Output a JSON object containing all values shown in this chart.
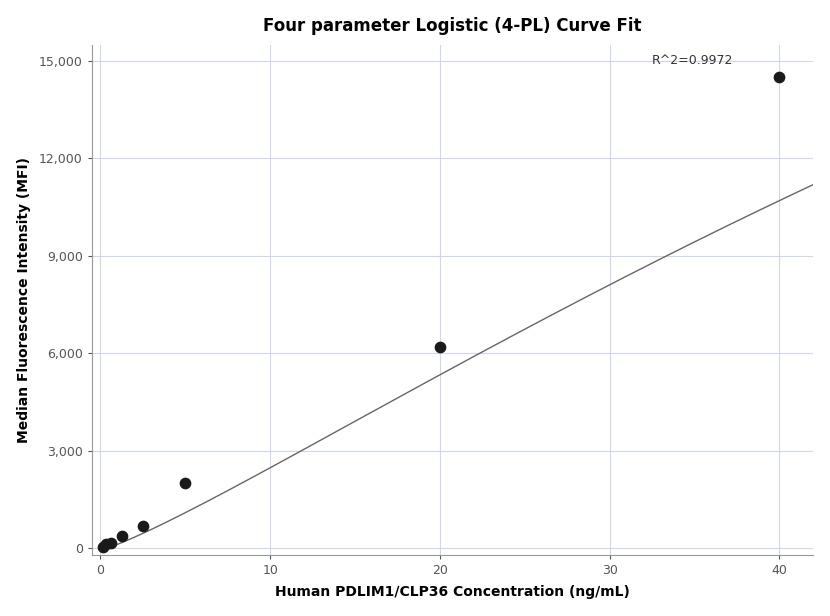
{
  "title": "Four parameter Logistic (4-PL) Curve Fit",
  "xlabel": "Human PDLIM1/CLP36 Concentration (ng/mL)",
  "ylabel": "Median Fluorescence Intensity (MFI)",
  "scatter_x": [
    0.156,
    0.313,
    0.625,
    1.25,
    2.5,
    5.0,
    20.0,
    40.0
  ],
  "scatter_y": [
    60,
    130,
    175,
    380,
    700,
    2000,
    6200,
    14500
  ],
  "xlim": [
    -0.5,
    42
  ],
  "ylim": [
    -200,
    15500
  ],
  "yticks": [
    0,
    3000,
    6000,
    9000,
    12000,
    15000
  ],
  "xticks": [
    0,
    10,
    20,
    30,
    40
  ],
  "r_squared": "R^2=0.9972",
  "curve_color": "#666666",
  "scatter_color": "#1a1a1a",
  "background_color": "#ffffff",
  "grid_color": "#d0d8e8",
  "title_fontsize": 12,
  "label_fontsize": 10,
  "annotation_fontsize": 9,
  "4pl_A": -50,
  "4pl_D": 50000,
  "4pl_C": 120,
  "4pl_B": 1.18
}
